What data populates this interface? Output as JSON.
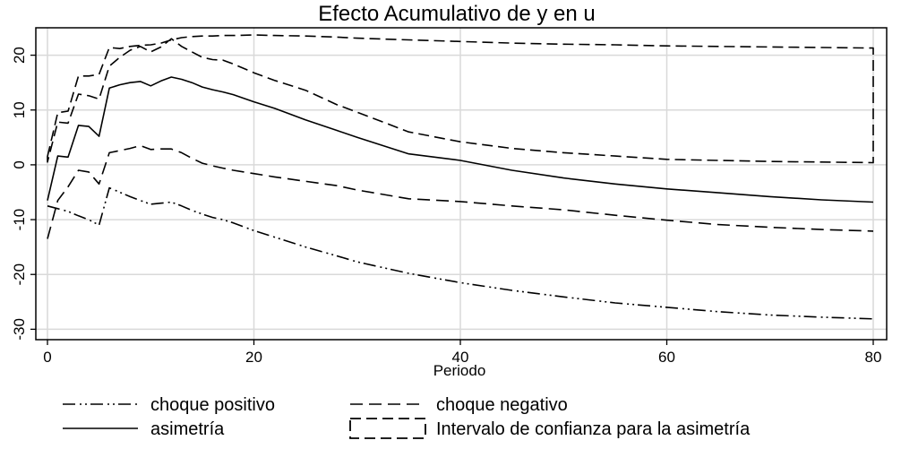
{
  "chart_data": {
    "type": "line",
    "title": "Efecto Acumulativo de y en u",
    "xlabel": "Periodo",
    "ylabel": "",
    "xlim": [
      0,
      80
    ],
    "ylim": [
      -31,
      25
    ],
    "xticks": [
      0,
      20,
      40,
      60,
      80
    ],
    "yticks": [
      20,
      10,
      0,
      -10,
      -20,
      -30
    ],
    "grid": true,
    "legend_position": "bottom",
    "series": [
      {
        "name": "choque positivo",
        "style": "dash-dot-dot",
        "x": [
          0,
          1,
          2,
          3,
          4,
          5,
          6,
          7,
          8,
          9,
          10,
          11,
          12,
          13,
          14,
          15,
          16,
          17,
          18,
          20,
          22,
          25,
          28,
          30,
          35,
          40,
          45,
          50,
          55,
          60,
          65,
          70,
          75,
          80
        ],
        "y": [
          -7.5,
          -8.0,
          -8.5,
          -9.3,
          -10.0,
          -11.0,
          -4.2,
          -5.0,
          -5.8,
          -6.5,
          -7.2,
          -7.0,
          -6.8,
          -7.5,
          -8.3,
          -9.0,
          -9.6,
          -10.0,
          -10.6,
          -12.0,
          -13.2,
          -15.0,
          -16.6,
          -17.7,
          -19.8,
          -21.5,
          -22.9,
          -24.1,
          -25.2,
          -26.0,
          -26.8,
          -27.4,
          -27.8,
          -28.1
        ]
      },
      {
        "name": "choque negativo",
        "style": "long-dash-gap",
        "x": [
          0,
          1,
          2,
          3,
          4,
          5,
          6,
          7,
          8,
          9,
          10,
          11,
          12,
          13,
          14,
          15,
          16,
          17,
          18,
          20,
          22,
          25,
          28,
          30,
          35,
          40,
          45,
          50,
          55,
          60,
          65,
          70,
          75,
          80
        ],
        "y": [
          -13.5,
          -6.5,
          -4.0,
          -1.0,
          -1.3,
          -3.5,
          2.2,
          2.6,
          3.0,
          3.5,
          2.8,
          2.9,
          2.9,
          2.2,
          1.2,
          0.3,
          -0.2,
          -0.6,
          -1.0,
          -1.6,
          -2.2,
          -3.0,
          -3.8,
          -4.6,
          -6.2,
          -6.7,
          -7.5,
          -8.2,
          -9.2,
          -10.1,
          -10.9,
          -11.4,
          -11.8,
          -12.1
        ]
      },
      {
        "name": "asimetría",
        "style": "solid",
        "x": [
          0,
          1,
          2,
          3,
          4,
          5,
          6,
          7,
          8,
          9,
          10,
          11,
          12,
          13,
          14,
          15,
          16,
          17,
          18,
          20,
          22,
          25,
          28,
          30,
          35,
          40,
          45,
          50,
          55,
          60,
          65,
          70,
          75,
          80
        ],
        "y": [
          -6.5,
          1.6,
          1.4,
          7.2,
          7.0,
          5.2,
          14.0,
          14.6,
          15.0,
          15.2,
          14.4,
          15.3,
          16.0,
          15.6,
          15.0,
          14.2,
          13.7,
          13.3,
          12.8,
          11.5,
          10.3,
          8.2,
          6.3,
          5.0,
          2.0,
          0.8,
          -1.0,
          -2.4,
          -3.5,
          -4.4,
          -5.1,
          -5.8,
          -6.4,
          -6.8
        ]
      },
      {
        "name": "Intervalo de confianza para la asimetría",
        "style": "dashed-band",
        "upper_x": [
          0,
          1,
          2,
          3,
          4,
          5,
          6,
          7,
          8,
          9,
          10,
          11,
          12,
          13,
          14,
          15,
          16,
          17,
          18,
          20,
          22,
          25,
          28,
          30,
          35,
          40,
          45,
          50,
          55,
          60,
          65,
          70,
          75,
          80
        ],
        "upper_y": [
          1.5,
          9.5,
          9.8,
          16.2,
          16.2,
          16.5,
          21.4,
          21.2,
          21.6,
          21.8,
          21.9,
          22.2,
          22.8,
          23.2,
          23.4,
          23.5,
          23.5,
          23.6,
          23.6,
          23.7,
          23.6,
          23.5,
          23.3,
          23.1,
          22.8,
          22.5,
          22.2,
          22.0,
          21.9,
          21.7,
          21.6,
          21.5,
          21.4,
          21.3
        ],
        "lower_x": [
          0,
          1,
          2,
          3,
          4,
          5,
          6,
          7,
          8,
          9,
          10,
          11,
          12,
          13,
          14,
          15,
          16,
          17,
          18,
          20,
          22,
          25,
          28,
          30,
          35,
          40,
          45,
          50,
          55,
          60,
          65,
          70,
          75,
          80
        ],
        "lower_y": [
          0.5,
          7.8,
          7.6,
          12.9,
          12.6,
          12.0,
          18.0,
          19.6,
          20.9,
          21.6,
          20.6,
          21.5,
          23.0,
          21.6,
          20.6,
          19.6,
          19.2,
          19.1,
          18.4,
          16.8,
          15.4,
          13.6,
          11.0,
          9.6,
          6.0,
          4.2,
          3.0,
          2.2,
          1.6,
          1.0,
          0.8,
          0.6,
          0.5,
          0.4
        ]
      }
    ]
  },
  "legend": [
    {
      "label": "choque positivo",
      "style": "dash-dot-dot"
    },
    {
      "label": "choque negativo",
      "style": "long-dash-gap"
    },
    {
      "label": "asimetría",
      "style": "solid"
    },
    {
      "label": "Intervalo de confianza para la asimetría",
      "style": "dashed-box"
    }
  ],
  "colors": {
    "line": "#000000",
    "grid": "#d9d9d9",
    "background": "#ffffff"
  }
}
